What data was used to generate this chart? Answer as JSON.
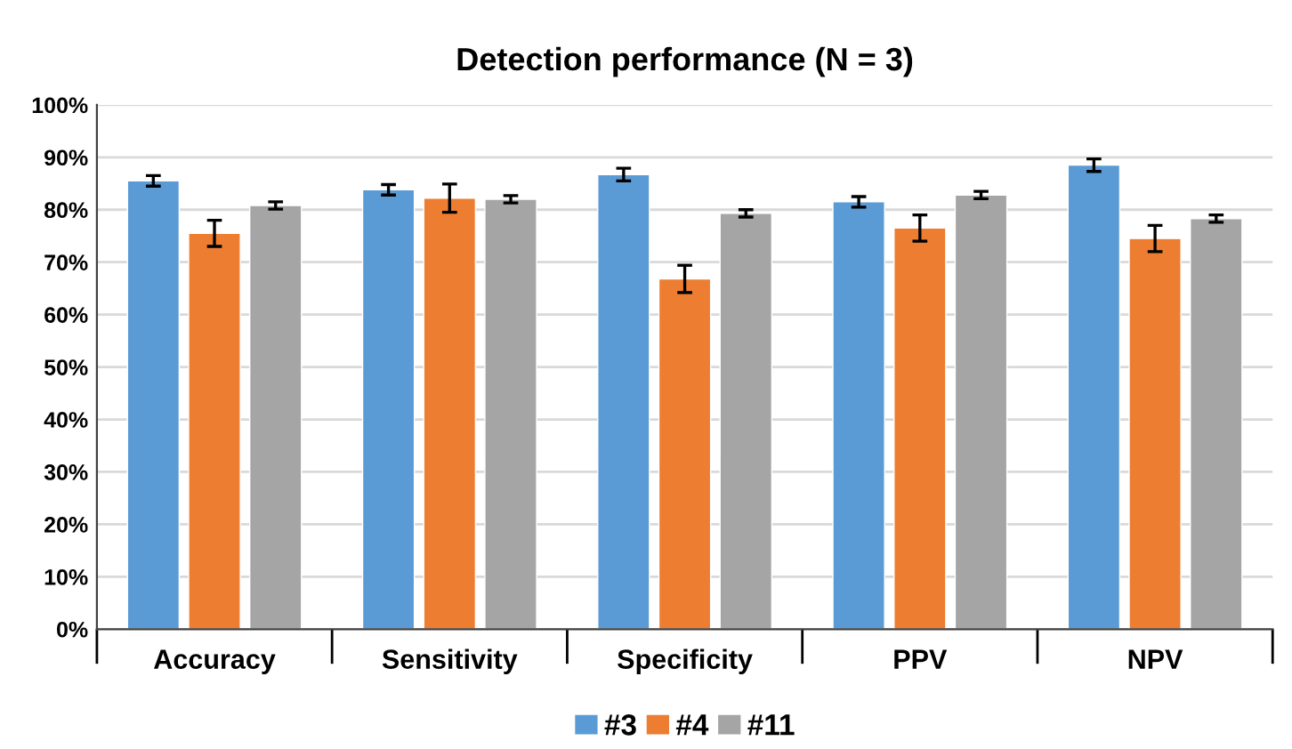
{
  "chart_data": {
    "type": "bar",
    "title": "Detection performance (N = 3)",
    "categories": [
      "Accuracy",
      "Sensitivity",
      "Specificity",
      "PPV",
      "NPV"
    ],
    "series": [
      {
        "name": "#3",
        "color": "#5b9bd5",
        "values": [
          85.5,
          83.8,
          86.7,
          81.5,
          88.5
        ],
        "errors": [
          1,
          1,
          1.2,
          1,
          1.2
        ]
      },
      {
        "name": "#4",
        "color": "#ed7d31",
        "values": [
          75.5,
          82.2,
          66.8,
          76.5,
          74.5
        ],
        "errors": [
          2.5,
          2.7,
          2.6,
          2.5,
          2.5
        ]
      },
      {
        "name": "#11",
        "color": "#a5a5a5",
        "values": [
          80.8,
          82.0,
          79.3,
          82.8,
          78.3
        ],
        "errors": [
          0.7,
          0.7,
          0.7,
          0.7,
          0.7
        ]
      }
    ],
    "ylim": [
      0,
      100
    ],
    "yticks": [
      {
        "value": 0,
        "label": "0%"
      },
      {
        "value": 10,
        "label": "10%"
      },
      {
        "value": 20,
        "label": "20%"
      },
      {
        "value": 30,
        "label": "30%"
      },
      {
        "value": 40,
        "label": "40%"
      },
      {
        "value": 50,
        "label": "50%"
      },
      {
        "value": 60,
        "label": "60%"
      },
      {
        "value": 70,
        "label": "70%"
      },
      {
        "value": 80,
        "label": "80%"
      },
      {
        "value": 90,
        "label": "90%"
      },
      {
        "value": 100,
        "label": "100%"
      }
    ],
    "grid": "y",
    "legend": "bottom"
  }
}
